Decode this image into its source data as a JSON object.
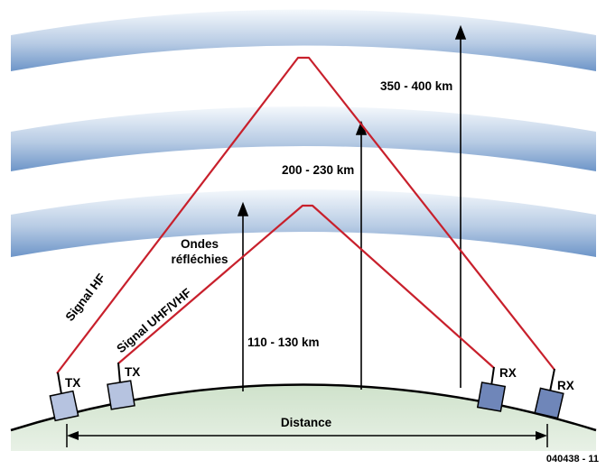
{
  "labels": {
    "alt_high": "350 - 400 km",
    "alt_mid": "200 - 230 km",
    "alt_low": "110 - 130 km",
    "ondes_line1": "Ondes",
    "ondes_line2": "réfléchies",
    "signal_hf": "Signal HF",
    "signal_uhf": "Signal UHF/VHF",
    "tx1": "TX",
    "tx2": "TX",
    "rx1": "RX",
    "rx2": "RX",
    "distance": "Distance",
    "figure_id": "040438 - 11"
  },
  "colors": {
    "signal": "#c8202c",
    "band_light": "#e9f0f8",
    "band_dark": "#7fa3cf",
    "ground": "#d9e8d6",
    "tx_fill": "#b6c3e0",
    "rx_fill": "#6f86b9",
    "arrow": "#000000"
  }
}
